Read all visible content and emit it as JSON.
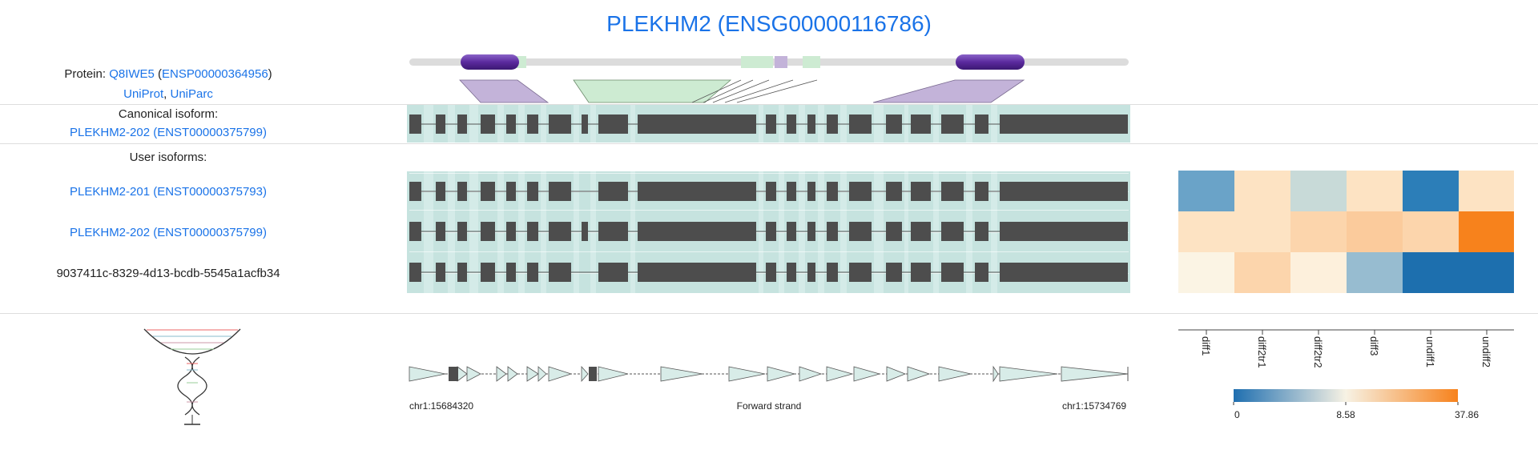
{
  "gene": {
    "title": "PLEKHM2 (ENSG00000116786)"
  },
  "protein": {
    "prefix": "Protein: ",
    "uniprot_acc": "Q8IWE5",
    "open_paren": " (",
    "ensp": "ENSP00000364956",
    "close_paren": ")",
    "uniprot_link": "UniProt",
    "sep": ", ",
    "uniparc_link": "UniParc"
  },
  "canonical": {
    "heading": "Canonical isoform:",
    "name": "PLEKHM2-202 (ENST00000375799)"
  },
  "user_isoforms": {
    "heading": "User isoforms:",
    "items": [
      {
        "label": "PLEKHM2-201 (ENST00000375793)",
        "link": true
      },
      {
        "label": "PLEKHM2-202 (ENST00000375799)",
        "link": true
      },
      {
        "label": "9037411c-8329-4d13-bcdb-5545a1acfb34",
        "link": false
      }
    ]
  },
  "strand": {
    "start": "chr1:15684320",
    "label": "Forward strand",
    "end": "chr1:15734769"
  },
  "heatmap": {
    "columns": [
      "diff1",
      "diff2tr1",
      "diff2tr2",
      "diff3",
      "undiff1",
      "undiff2"
    ],
    "colors": [
      [
        "#6aa3c8",
        "#fde3c3",
        "#c8dad8",
        "#fde3c3",
        "#2c7eb8",
        "#fde3c3"
      ],
      [
        "#fde3c3",
        "#fde3c3",
        "#fcd5ac",
        "#fbcb9c",
        "#fcd5ac",
        "#f7821c"
      ],
      [
        "#fbf4e4",
        "#fcd5ac",
        "#fdf0dc",
        "#97bcd0",
        "#1d6fae",
        "#1d6fae"
      ]
    ]
  },
  "colorbar": {
    "tick_min": "0",
    "tick_mid": "8.58",
    "tick_max": "37.86",
    "color_low": "#1f6fb0",
    "color_mid": "#f7f2e4",
    "color_high": "#f7821c"
  },
  "colors": {
    "link": "#1a73e8",
    "exon": "#4d4d4d",
    "band": "#d4ebe8",
    "domain_purple": "#5b2a9e",
    "feature_green": "#cdebd2",
    "feature_purple": "#c3b3d9"
  },
  "icons": {
    "dna": "dna-helix-icon"
  }
}
